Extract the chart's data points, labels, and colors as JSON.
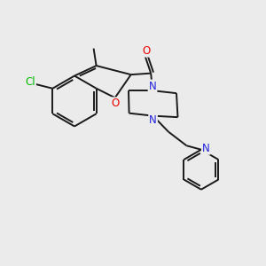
{
  "background_color": "#ebebeb",
  "bond_color": "#1a1a1a",
  "atom_colors": {
    "Cl": "#00bb00",
    "O_carbonyl": "#ee0000",
    "O_furan": "#ee0000",
    "N": "#2222dd"
  },
  "lw": 1.4
}
